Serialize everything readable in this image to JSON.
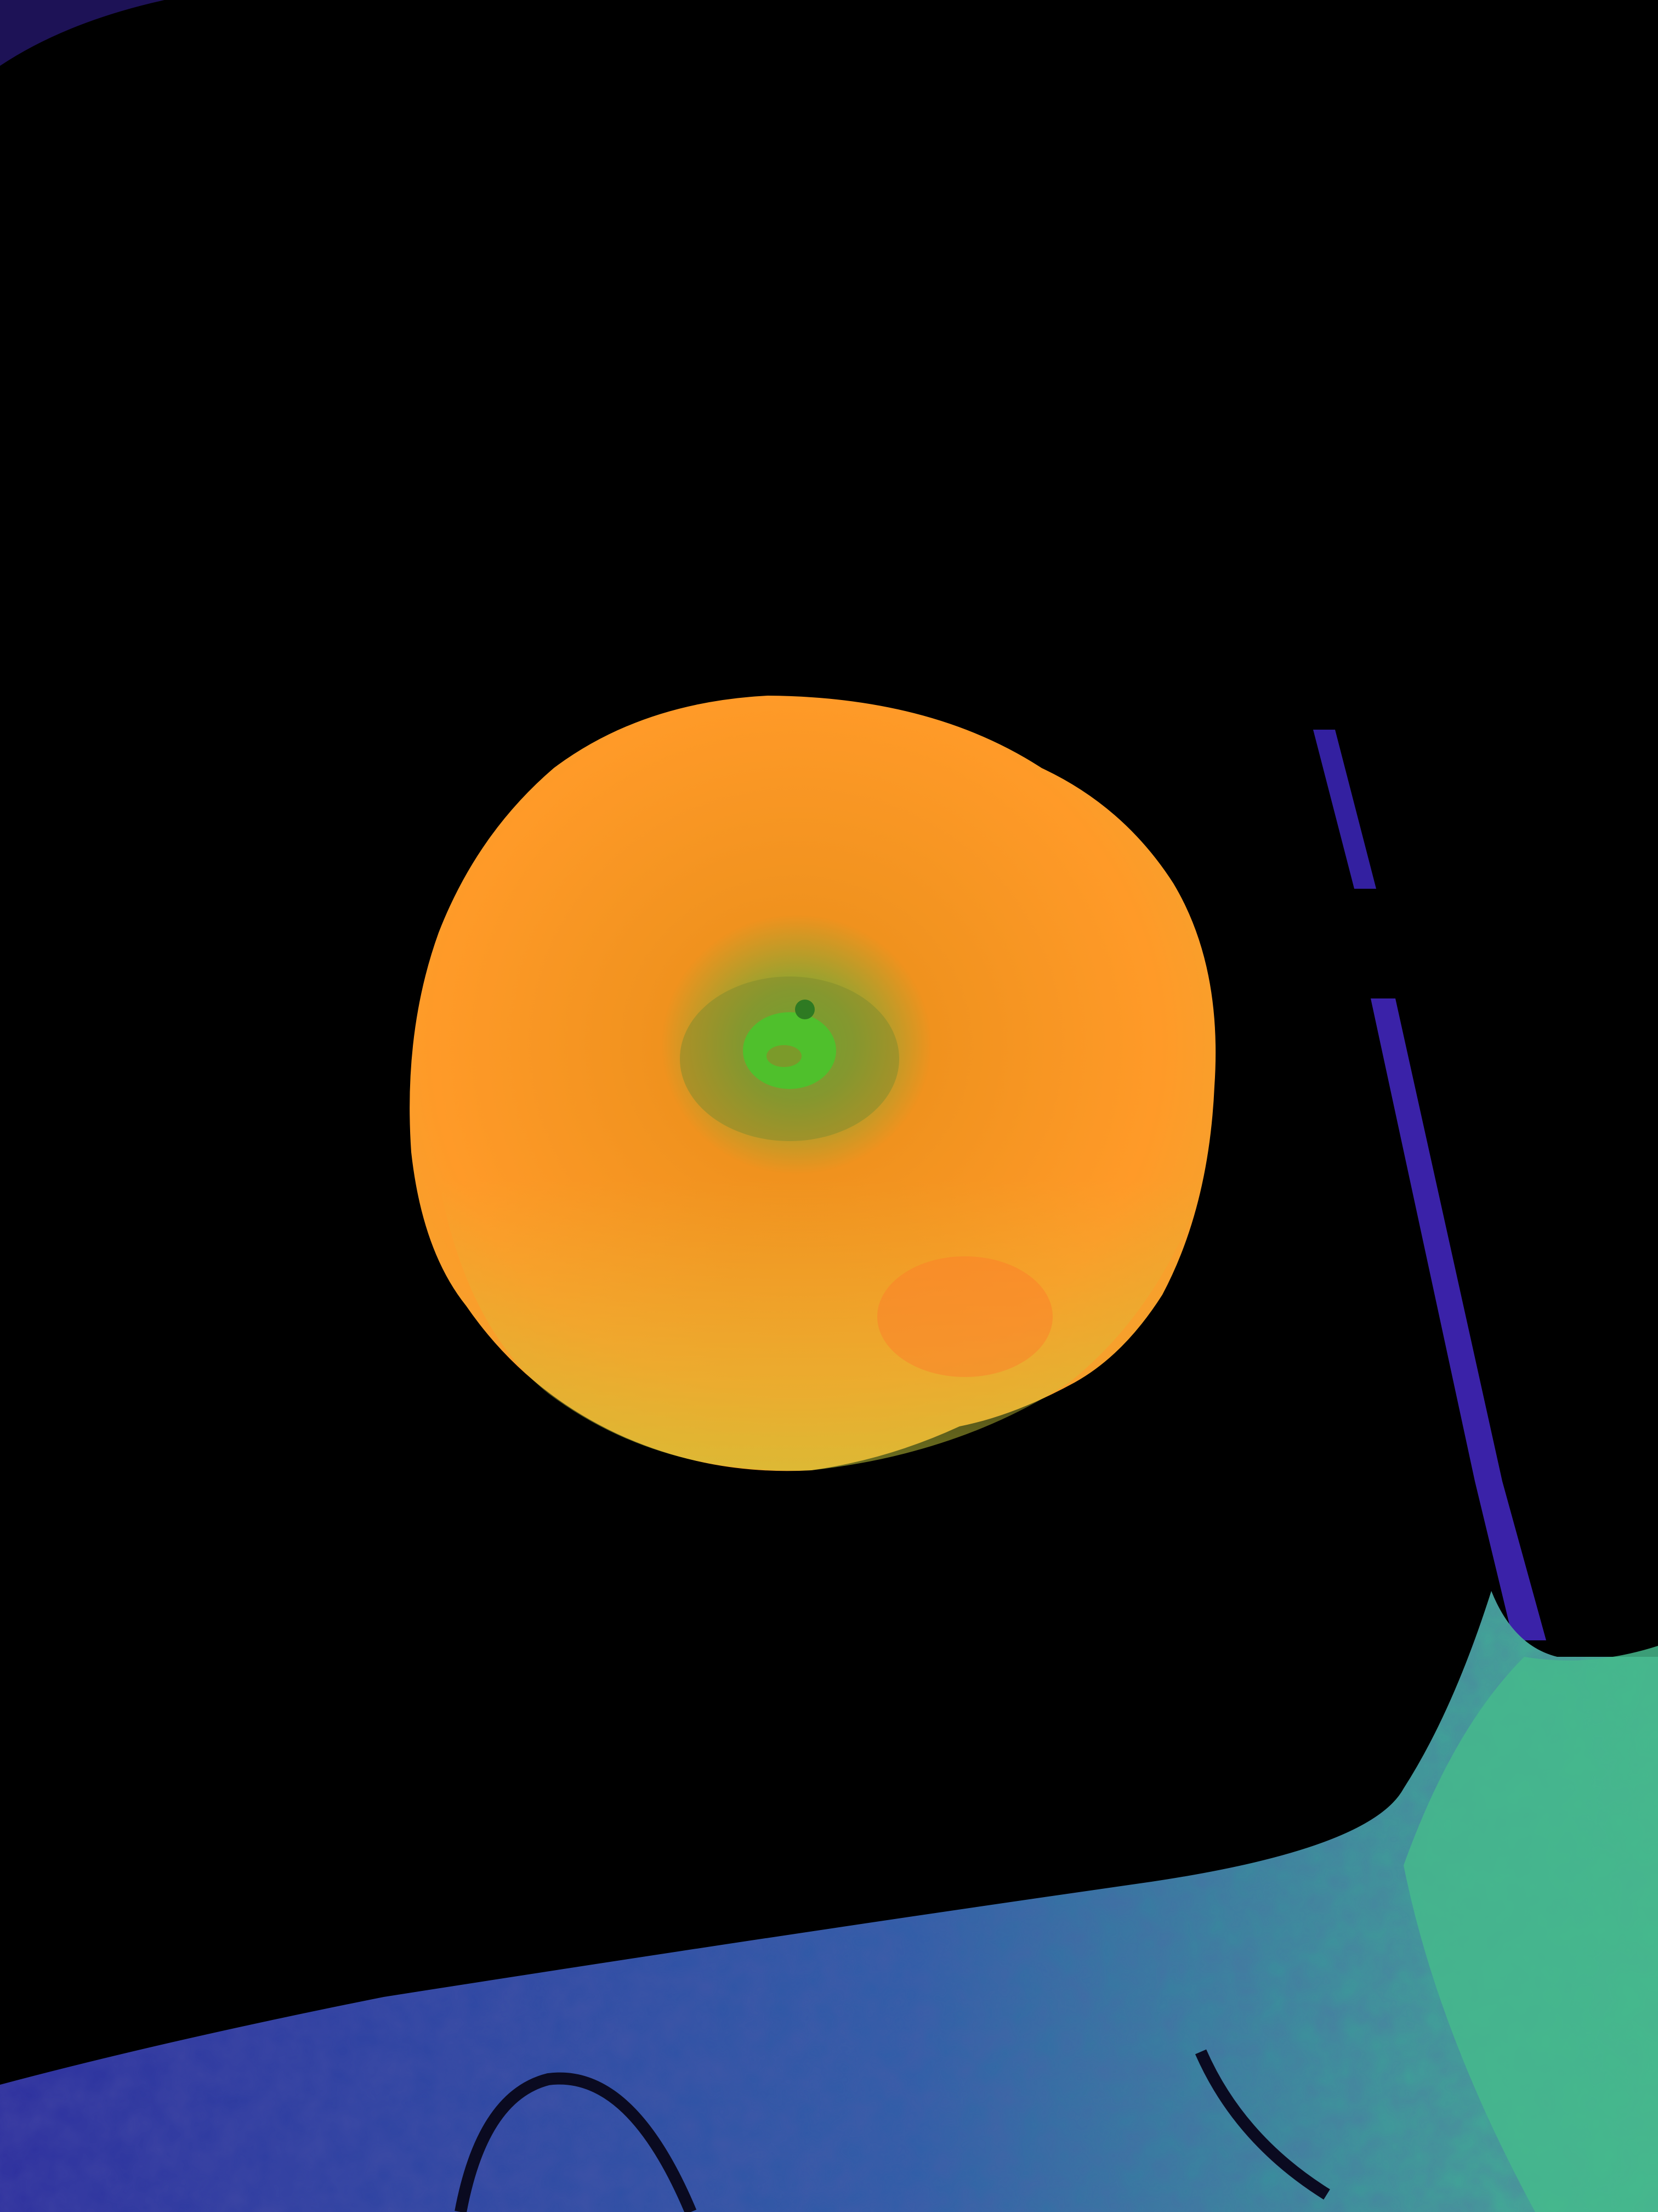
{
  "image": {
    "subject": "apple",
    "background": "dark surface",
    "false_color": true
  },
  "colors": {
    "background": "#000000",
    "apple_outer": "#ff9a26",
    "apple_inner": "#f58a1c",
    "apple_calyx": "#55c030",
    "apple_lower": "#c9c53a",
    "surface_edge": "#3a1fa0",
    "surface_blue": "#2a2a9a",
    "surface_teal": "#3fae86"
  }
}
